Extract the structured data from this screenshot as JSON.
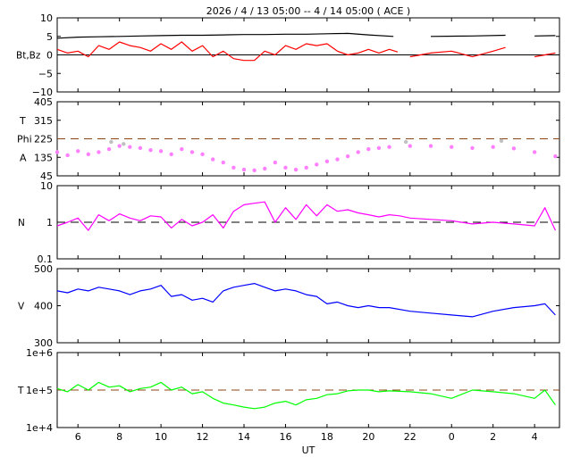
{
  "title": "2026  /  4 / 13   05:00 -- 4 / 14   05:00 ( ACE )",
  "x_axis": {
    "label": "UT",
    "ticks": [
      "6",
      "8",
      "10",
      "12",
      "14",
      "16",
      "18",
      "20",
      "22",
      "0",
      "2",
      "4"
    ],
    "tick_hours": [
      6,
      8,
      10,
      12,
      14,
      16,
      18,
      20,
      22,
      24,
      26,
      28
    ],
    "range_hours": [
      5,
      29.2
    ]
  },
  "chart_data": [
    {
      "type": "line",
      "id": "mag",
      "ylabel": "Bt,Bz",
      "ylim": [
        -10,
        10
      ],
      "yticks": [
        {
          "v": 10,
          "t": "10"
        },
        {
          "v": 5,
          "t": "5"
        },
        {
          "v": 0,
          "t": "0"
        },
        {
          "v": -5,
          "t": "−5"
        },
        {
          "v": -10,
          "t": "−10"
        }
      ],
      "reference_lines": [
        {
          "y": 0,
          "style": "solid",
          "color": "#000000"
        }
      ],
      "series": [
        {
          "color": "#000000",
          "x": [
            5,
            6,
            7,
            8,
            9,
            10,
            11,
            12,
            13,
            14,
            15,
            16,
            17,
            18,
            19,
            20,
            21.2,
            21.6,
            23,
            25,
            26.6,
            27,
            28,
            29
          ],
          "y": [
            4.5,
            4.8,
            4.9,
            5.0,
            5.1,
            5.2,
            5.3,
            5.3,
            5.4,
            5.5,
            5.5,
            5.6,
            5.6,
            5.7,
            5.8,
            5.4,
            5.0,
            null,
            5.0,
            5.1,
            5.3,
            null,
            5.1,
            5.2
          ]
        },
        {
          "color": "#ff0000",
          "x": [
            5,
            5.5,
            6,
            6.5,
            7,
            7.5,
            8,
            8.5,
            9,
            9.5,
            10,
            10.5,
            11,
            11.5,
            12,
            12.5,
            13,
            13.5,
            14,
            14.5,
            15,
            15.5,
            16,
            16.5,
            17,
            17.5,
            18,
            18.5,
            19,
            19.5,
            20,
            20.5,
            21,
            21.4,
            21.6,
            22,
            23,
            24,
            25,
            26,
            26.6,
            27,
            28,
            29
          ],
          "y": [
            1.5,
            0.5,
            1.0,
            -0.5,
            2.5,
            1.5,
            3.5,
            2.5,
            2.0,
            1.0,
            3.0,
            1.5,
            3.5,
            1.0,
            2.5,
            -0.5,
            1.0,
            -1.0,
            -1.5,
            -1.5,
            1.0,
            0.0,
            2.5,
            1.5,
            3.0,
            2.5,
            3.0,
            1.0,
            0.0,
            0.5,
            1.5,
            0.5,
            1.5,
            0.8,
            null,
            -0.5,
            0.5,
            1.0,
            -0.5,
            1.0,
            2.0,
            null,
            -0.5,
            0.5
          ]
        }
      ]
    },
    {
      "type": "scatter",
      "id": "angle",
      "ylabel_lines": [
        "T",
        "Phi",
        "A"
      ],
      "ylim": [
        45,
        405
      ],
      "yticks": [
        {
          "v": 405,
          "t": "405"
        },
        {
          "v": 315,
          "t": "315"
        },
        {
          "v": 225,
          "t": "225"
        },
        {
          "v": 135,
          "t": "135"
        },
        {
          "v": 45,
          "t": "45"
        }
      ],
      "reference_lines": [
        {
          "y": 225,
          "style": "dashed",
          "color": "#8b4513"
        }
      ],
      "series": [
        {
          "color": "#ff80ff",
          "x": [
            5,
            5.5,
            6,
            6.5,
            7,
            7.5,
            8,
            8.5,
            9,
            9.5,
            10,
            10.5,
            11,
            11.5,
            12,
            12.5,
            13,
            13.5,
            14,
            14.5,
            15,
            15.5,
            16,
            16.5,
            17,
            17.5,
            18,
            18.5,
            19,
            19.5,
            20,
            20.5,
            21,
            22,
            23,
            24,
            25,
            26,
            27,
            28,
            29
          ],
          "y": [
            160,
            145,
            165,
            150,
            160,
            175,
            190,
            185,
            180,
            170,
            165,
            150,
            175,
            160,
            150,
            125,
            110,
            85,
            75,
            72,
            80,
            110,
            85,
            75,
            85,
            100,
            115,
            125,
            140,
            160,
            175,
            180,
            185,
            190,
            190,
            185,
            180,
            185,
            178,
            160,
            140
          ]
        },
        {
          "color": "#c0c0c0",
          "x": [
            7.6,
            8.2,
            21.8,
            26.4
          ],
          "y": [
            210,
            200,
            210,
            215
          ]
        }
      ]
    },
    {
      "type": "line",
      "id": "density",
      "ylabel": "N",
      "scale": "log",
      "ylim": [
        0.1,
        10
      ],
      "yticks": [
        {
          "v": 10,
          "t": "10"
        },
        {
          "v": 1,
          "t": "1"
        },
        {
          "v": 0.1,
          "t": "0.1"
        }
      ],
      "reference_lines": [
        {
          "y": 1,
          "style": "dashed",
          "color": "#000000"
        }
      ],
      "series": [
        {
          "color": "#ff00ff",
          "x": [
            5,
            5.5,
            6,
            6.5,
            7,
            7.5,
            8,
            8.5,
            9,
            9.5,
            10,
            10.5,
            11,
            11.5,
            12,
            12.5,
            13,
            13.5,
            14,
            14.5,
            15,
            15.5,
            16,
            16.5,
            17,
            17.5,
            18,
            18.5,
            19,
            19.5,
            20,
            20.5,
            21,
            21.5,
            22,
            23,
            24,
            25,
            26,
            27,
            28,
            28.5,
            29
          ],
          "y": [
            0.8,
            1.0,
            1.3,
            0.6,
            1.6,
            1.1,
            1.7,
            1.3,
            1.1,
            1.5,
            1.4,
            0.7,
            1.2,
            0.8,
            1.0,
            1.6,
            0.7,
            2.0,
            3.0,
            3.3,
            3.6,
            1.0,
            2.5,
            1.2,
            3.0,
            1.5,
            3.0,
            2.0,
            2.2,
            1.8,
            1.6,
            1.4,
            1.6,
            1.5,
            1.3,
            1.2,
            1.1,
            0.9,
            1.0,
            0.9,
            0.8,
            2.5,
            0.6
          ]
        }
      ]
    },
    {
      "type": "line",
      "id": "speed",
      "ylabel": "V",
      "ylim": [
        300,
        500
      ],
      "yticks": [
        {
          "v": 500,
          "t": "500"
        },
        {
          "v": 400,
          "t": "400"
        },
        {
          "v": 300,
          "t": "300"
        }
      ],
      "reference_lines": [],
      "series": [
        {
          "color": "#0000ff",
          "x": [
            5,
            5.5,
            6,
            6.5,
            7,
            7.5,
            8,
            8.5,
            9,
            9.5,
            10,
            10.5,
            11,
            11.5,
            12,
            12.5,
            13,
            13.5,
            14,
            14.5,
            15,
            15.5,
            16,
            16.5,
            17,
            17.5,
            18,
            18.5,
            19,
            19.5,
            20,
            20.5,
            21,
            22,
            23,
            24,
            25,
            26,
            27,
            28,
            28.5,
            29
          ],
          "y": [
            440,
            435,
            445,
            440,
            450,
            445,
            440,
            430,
            440,
            445,
            455,
            425,
            430,
            415,
            420,
            410,
            440,
            450,
            455,
            460,
            450,
            440,
            445,
            440,
            430,
            425,
            405,
            410,
            400,
            395,
            400,
            395,
            395,
            385,
            380,
            375,
            370,
            385,
            395,
            400,
            405,
            375
          ]
        }
      ]
    },
    {
      "type": "line",
      "id": "temperature",
      "ylabel": "T",
      "scale": "log",
      "ylim": [
        10000,
        1000000
      ],
      "yticks": [
        {
          "v": 1000000,
          "t": "1e+6"
        },
        {
          "v": 100000,
          "t": "1e+5"
        },
        {
          "v": 10000,
          "t": "1e+4"
        }
      ],
      "reference_lines": [
        {
          "y": 100000,
          "style": "dashed",
          "color": "#8b4513"
        }
      ],
      "series": [
        {
          "color": "#00ff00",
          "x": [
            5,
            5.5,
            6,
            6.5,
            7,
            7.5,
            8,
            8.5,
            9,
            9.5,
            10,
            10.5,
            11,
            11.5,
            12,
            12.5,
            13,
            13.5,
            14,
            14.5,
            15,
            15.5,
            16,
            16.5,
            17,
            17.5,
            18,
            18.5,
            19,
            19.5,
            20,
            20.5,
            21,
            22,
            23,
            24,
            25,
            26,
            27,
            28,
            28.5,
            29
          ],
          "y": [
            110000,
            90000,
            140000,
            100000,
            160000,
            120000,
            130000,
            90000,
            110000,
            120000,
            160000,
            100000,
            120000,
            80000,
            90000,
            60000,
            45000,
            40000,
            35000,
            32000,
            35000,
            45000,
            50000,
            40000,
            55000,
            60000,
            75000,
            80000,
            95000,
            100000,
            100000,
            90000,
            95000,
            90000,
            80000,
            60000,
            100000,
            90000,
            80000,
            60000,
            100000,
            40000
          ]
        }
      ]
    }
  ]
}
